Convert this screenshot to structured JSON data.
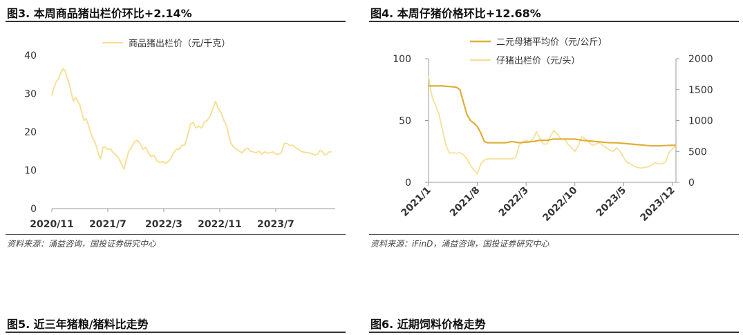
{
  "fig3": {
    "title": "图3. 本周商品猪出栏价环比+2.14%",
    "source": "资料来源：涌益咨询，国投证券研究中心"
  },
  "fig4": {
    "title": "图4. 本周仔猪价格环比+12.68%",
    "source": "资料来源：iFinD，涌益咨询，国投证券研究中心"
  },
  "fig5": {
    "title": "图5. 近三年猪粮/猪料比走势"
  },
  "fig6": {
    "title": "图6. 近期饲料价格走势"
  },
  "colors": {
    "light": "#f8df96",
    "dark": "#e0ad36",
    "axis": "#999999"
  },
  "chart_data": [
    {
      "id": "fig3",
      "type": "line",
      "ylim": [
        0,
        40
      ],
      "yticks": [
        0,
        10,
        20,
        30,
        40
      ],
      "xticks": [
        {
          "pos": 0,
          "label": "2020/11"
        },
        {
          "pos": 8,
          "label": "2021/7"
        },
        {
          "pos": 16,
          "label": "2022/3"
        },
        {
          "pos": 24,
          "label": "2022/11"
        },
        {
          "pos": 32,
          "label": "2023/7"
        }
      ],
      "xmax": 40.5,
      "series": [
        {
          "name": "商品猪出栏价（元/千克）",
          "color": "#f8df96",
          "points": [
            [
              0,
              29.5
            ],
            [
              0.3,
              31.5
            ],
            [
              0.6,
              33
            ],
            [
              1,
              34
            ],
            [
              1.3,
              35.5
            ],
            [
              1.6,
              36.5
            ],
            [
              1.9,
              36
            ],
            [
              2.2,
              34
            ],
            [
              2.5,
              32.5
            ],
            [
              2.8,
              30
            ],
            [
              3.1,
              28
            ],
            [
              3.4,
              29
            ],
            [
              3.7,
              28
            ],
            [
              4,
              27
            ],
            [
              4.3,
              25
            ],
            [
              4.6,
              23
            ],
            [
              4.9,
              23.5
            ],
            [
              5.2,
              22
            ],
            [
              5.5,
              20
            ],
            [
              5.8,
              18.5
            ],
            [
              6.1,
              17.5
            ],
            [
              6.4,
              16
            ],
            [
              6.7,
              14
            ],
            [
              7,
              13
            ],
            [
              7.3,
              16
            ],
            [
              7.6,
              16
            ],
            [
              8,
              15.5
            ],
            [
              8.4,
              15.5
            ],
            [
              8.8,
              14.5
            ],
            [
              9.2,
              14
            ],
            [
              9.6,
              13
            ],
            [
              10,
              11.5
            ],
            [
              10.3,
              10.3
            ],
            [
              10.6,
              12.5
            ],
            [
              11,
              15
            ],
            [
              11.4,
              16
            ],
            [
              11.8,
              17.5
            ],
            [
              12.2,
              17.8
            ],
            [
              12.6,
              17
            ],
            [
              13,
              15.5
            ],
            [
              13.4,
              16
            ],
            [
              13.8,
              14.5
            ],
            [
              14.2,
              13.5
            ],
            [
              14.6,
              14
            ],
            [
              15,
              12.5
            ],
            [
              15.4,
              12
            ],
            [
              15.8,
              12.3
            ],
            [
              16.2,
              11.8
            ],
            [
              16.6,
              12.2
            ],
            [
              17,
              13
            ],
            [
              17.4,
              14.5
            ],
            [
              17.8,
              15.5
            ],
            [
              18.2,
              15.5
            ],
            [
              18.6,
              16.5
            ],
            [
              19,
              16.5
            ],
            [
              19.4,
              19
            ],
            [
              19.8,
              22
            ],
            [
              20.2,
              22.5
            ],
            [
              20.6,
              21
            ],
            [
              21,
              21.5
            ],
            [
              21.4,
              21
            ],
            [
              21.8,
              22.5
            ],
            [
              22.2,
              23
            ],
            [
              22.6,
              24
            ],
            [
              23,
              26
            ],
            [
              23.4,
              28
            ],
            [
              23.8,
              26
            ],
            [
              24.2,
              25
            ],
            [
              24.6,
              23
            ],
            [
              25,
              21.5
            ],
            [
              25.3,
              19
            ],
            [
              25.6,
              17
            ],
            [
              26,
              16
            ],
            [
              26.4,
              15.5
            ],
            [
              26.8,
              15
            ],
            [
              27.2,
              14.5
            ],
            [
              27.6,
              15.5
            ],
            [
              28,
              15.8
            ],
            [
              28.4,
              15
            ],
            [
              28.8,
              14.8
            ],
            [
              29.2,
              14.5
            ],
            [
              29.6,
              15
            ],
            [
              30,
              14.2
            ],
            [
              30.4,
              14.8
            ],
            [
              30.8,
              14.5
            ],
            [
              31.2,
              14.5
            ],
            [
              31.6,
              14.8
            ],
            [
              32,
              14.2
            ],
            [
              32.4,
              14.2
            ],
            [
              32.8,
              14.5
            ],
            [
              33.2,
              17
            ],
            [
              33.6,
              17
            ],
            [
              34,
              16.5
            ],
            [
              34.4,
              16.5
            ],
            [
              34.8,
              16
            ],
            [
              35.2,
              15.5
            ],
            [
              35.6,
              15
            ],
            [
              36,
              14.7
            ],
            [
              36.4,
              14.6
            ],
            [
              36.8,
              14.5
            ],
            [
              37.2,
              14.3
            ],
            [
              37.6,
              14
            ],
            [
              38,
              14.2
            ],
            [
              38.3,
              15.2
            ],
            [
              38.6,
              15
            ],
            [
              39,
              14
            ],
            [
              39.3,
              14.2
            ],
            [
              39.6,
              14.8
            ],
            [
              40,
              14.8
            ]
          ]
        }
      ]
    },
    {
      "id": "fig4",
      "type": "line",
      "ylim_left": [
        0,
        100
      ],
      "ylim_right": [
        0,
        2000
      ],
      "yticks_left": [
        0,
        50,
        100
      ],
      "yticks_right": [
        0,
        500,
        1000,
        1500,
        2000
      ],
      "xticks": [
        {
          "pos": 0,
          "label": "2021/1"
        },
        {
          "pos": 7,
          "label": "2021/8"
        },
        {
          "pos": 14,
          "label": "2022/3"
        },
        {
          "pos": 21,
          "label": "2022/10"
        },
        {
          "pos": 28,
          "label": "2023/5"
        },
        {
          "pos": 35,
          "label": "2023/12"
        }
      ],
      "xmax": 35.5,
      "series": [
        {
          "name": "二元母猪平均价（元/公斤）",
          "axis": "left",
          "color": "#e0ad36",
          "width": 2.2,
          "points": [
            [
              0,
              78
            ],
            [
              1,
              78
            ],
            [
              2,
              78
            ],
            [
              3,
              77.5
            ],
            [
              4,
              77
            ],
            [
              4.5,
              75
            ],
            [
              5,
              65
            ],
            [
              5.5,
              55
            ],
            [
              6,
              50
            ],
            [
              6.5,
              48
            ],
            [
              7,
              45
            ],
            [
              7.5,
              40
            ],
            [
              8,
              33
            ],
            [
              8.5,
              32
            ],
            [
              9,
              32
            ],
            [
              10,
              32
            ],
            [
              11,
              32
            ],
            [
              12,
              33
            ],
            [
              13,
              32
            ],
            [
              14,
              32.5
            ],
            [
              15,
              33
            ],
            [
              16,
              34
            ],
            [
              17,
              34
            ],
            [
              18,
              35
            ],
            [
              19,
              35
            ],
            [
              20,
              35
            ],
            [
              21,
              35
            ],
            [
              22,
              34
            ],
            [
              23,
              33.5
            ],
            [
              24,
              33
            ],
            [
              25,
              32.5
            ],
            [
              26,
              32
            ],
            [
              27,
              32
            ],
            [
              28,
              31.5
            ],
            [
              29,
              31
            ],
            [
              30,
              30.5
            ],
            [
              31,
              30
            ],
            [
              32,
              29.5
            ],
            [
              33,
              29.5
            ],
            [
              34,
              29.8
            ],
            [
              35,
              30
            ],
            [
              35.5,
              30
            ]
          ]
        },
        {
          "name": "仔猪出栏价（元/头）",
          "axis": "right",
          "color": "#f8df96",
          "width": 1.8,
          "points": [
            [
              0,
              1720
            ],
            [
              0.3,
              1500
            ],
            [
              0.6,
              1350
            ],
            [
              1,
              1250
            ],
            [
              1.5,
              1100
            ],
            [
              2,
              850
            ],
            [
              2.5,
              600
            ],
            [
              3,
              470
            ],
            [
              3.5,
              480
            ],
            [
              4,
              470
            ],
            [
              4.5,
              480
            ],
            [
              5,
              450
            ],
            [
              5.5,
              380
            ],
            [
              6,
              280
            ],
            [
              6.5,
              200
            ],
            [
              7,
              140
            ],
            [
              7.5,
              300
            ],
            [
              8,
              360
            ],
            [
              8.5,
              380
            ],
            [
              9,
              380
            ],
            [
              10,
              380
            ],
            [
              11,
              380
            ],
            [
              12,
              380
            ],
            [
              12.5,
              400
            ],
            [
              13,
              600
            ],
            [
              13.5,
              650
            ],
            [
              14,
              680
            ],
            [
              14.5,
              650
            ],
            [
              15,
              700
            ],
            [
              15.5,
              820
            ],
            [
              16,
              700
            ],
            [
              16.5,
              620
            ],
            [
              17,
              620
            ],
            [
              17.5,
              750
            ],
            [
              18,
              840
            ],
            [
              18.5,
              780
            ],
            [
              19,
              700
            ],
            [
              19.5,
              700
            ],
            [
              20,
              620
            ],
            [
              20.5,
              560
            ],
            [
              21,
              500
            ],
            [
              21.5,
              600
            ],
            [
              22,
              740
            ],
            [
              22.5,
              700
            ],
            [
              23,
              650
            ],
            [
              23.5,
              600
            ],
            [
              24,
              620
            ],
            [
              24.5,
              640
            ],
            [
              25,
              600
            ],
            [
              25.5,
              560
            ],
            [
              26,
              520
            ],
            [
              26.5,
              500
            ],
            [
              27,
              560
            ],
            [
              27.5,
              500
            ],
            [
              28,
              400
            ],
            [
              28.5,
              320
            ],
            [
              29,
              300
            ],
            [
              29.5,
              260
            ],
            [
              30,
              240
            ],
            [
              30.5,
              230
            ],
            [
              31,
              240
            ],
            [
              31.5,
              250
            ],
            [
              32,
              280
            ],
            [
              32.5,
              320
            ],
            [
              33,
              300
            ],
            [
              33.5,
              300
            ],
            [
              34,
              330
            ],
            [
              34.5,
              480
            ],
            [
              35,
              540
            ],
            [
              35.5,
              600
            ]
          ]
        }
      ]
    }
  ]
}
